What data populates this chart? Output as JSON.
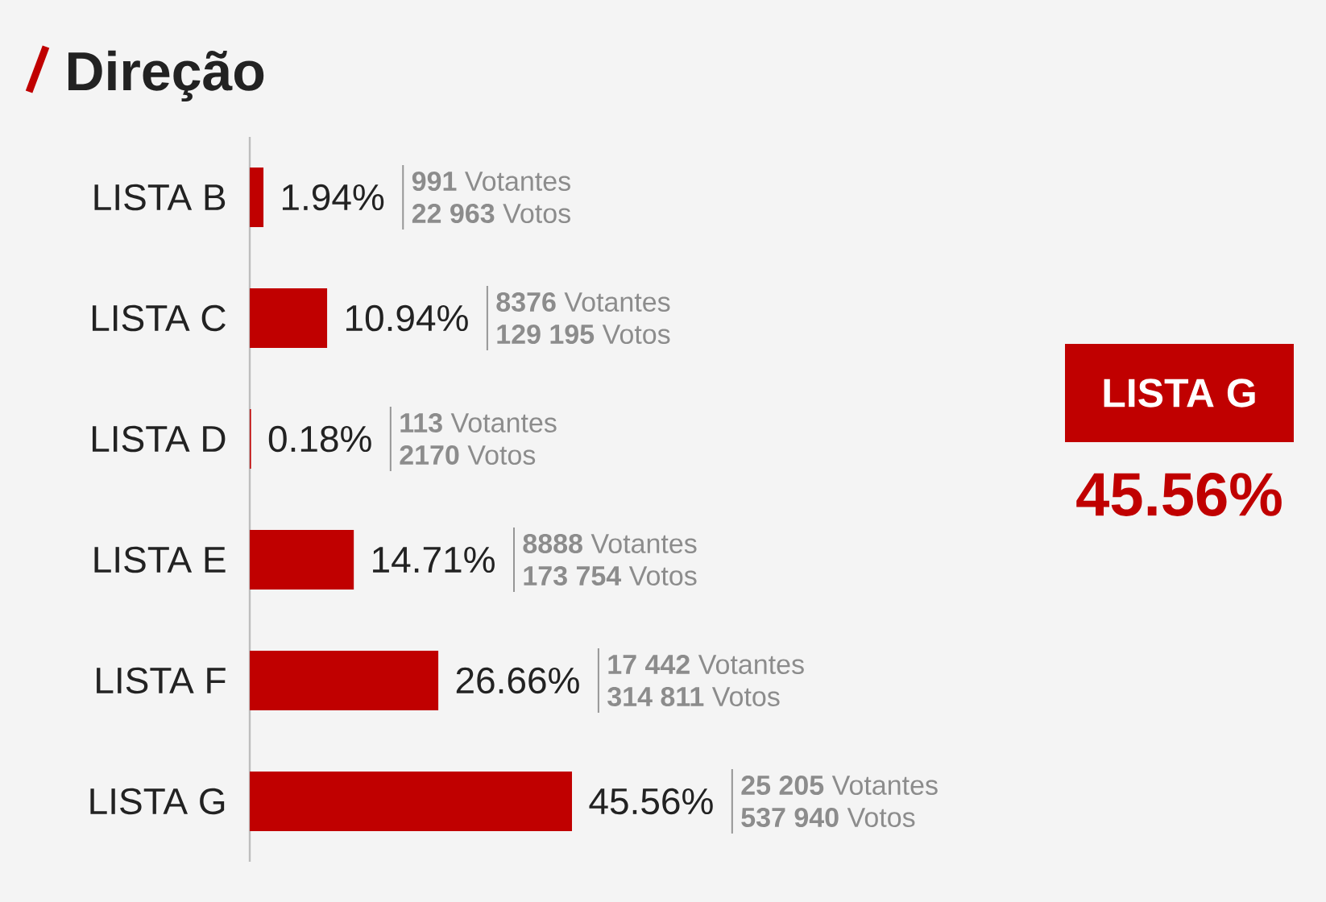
{
  "chart_data": {
    "type": "bar",
    "orientation": "horizontal",
    "title": "Direção",
    "categories": [
      "LISTA B",
      "LISTA C",
      "LISTA D",
      "LISTA E",
      "LISTA F",
      "LISTA G"
    ],
    "values": [
      1.94,
      10.94,
      0.18,
      14.71,
      26.66,
      45.56
    ],
    "value_labels": [
      "1.94%",
      "10.94%",
      "0.18%",
      "14.71%",
      "26.66%",
      "45.56%"
    ],
    "color": "#c00000",
    "annotations": [
      "**991** Votantes",
      "**22 963** Votos",
      "**8376** Votantes",
      "**129 195** Votos",
      "**113** Votantes",
      "**2170** Votos",
      "**8888** Votantes",
      "**173 754** Votos",
      "**17 442** Votantes",
      "**314 811** Votos",
      "**25 205** Votantes",
      "**537 940** Votos",
      "LISTA G",
      "45.56%"
    ]
  }
}
